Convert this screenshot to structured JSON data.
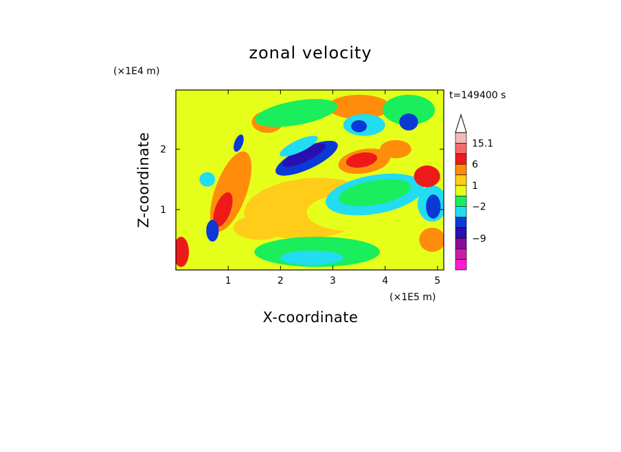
{
  "chart_data": {
    "type": "heatmap",
    "title": "zonal velocity",
    "xlabel": "X-coordinate",
    "ylabel": "Z-coordinate",
    "x_unit": "(×1E5 m)",
    "y_unit": "(×1E4 m)",
    "time_label": "t=149400 s",
    "xlim": [
      0,
      5.12
    ],
    "ylim": [
      0,
      2.98
    ],
    "x_ticks": [
      1,
      2,
      3,
      4,
      5
    ],
    "x_tick_labels": [
      "1",
      "2",
      "3",
      "4",
      "5"
    ],
    "y_ticks": [
      1,
      2
    ],
    "y_tick_labels": [
      "1",
      "2"
    ],
    "colorbar": {
      "levels": [
        {
          "color": "#ff1ad1"
        },
        {
          "color": "#c71fa3"
        },
        {
          "color": "#8c0a9c"
        },
        {
          "color": "#2a0fb0"
        },
        {
          "color": "#0a39d6"
        },
        {
          "color": "#22dcf2"
        },
        {
          "color": "#1aee5c"
        },
        {
          "color": "#e6ff1a"
        },
        {
          "color": "#ffcc1a"
        },
        {
          "color": "#ff8c0a"
        },
        {
          "color": "#ee1a1a"
        },
        {
          "color": "#f26a6a"
        },
        {
          "color": "#f7b8b8"
        }
      ],
      "labels": [
        {
          "text": "15.1",
          "at_level_top": 12
        },
        {
          "text": "6",
          "at_level_top": 10
        },
        {
          "text": "1",
          "at_level_top": 8
        },
        {
          "text": "−2",
          "at_level_top": 6
        },
        {
          "text": "−9",
          "at_level_top": 3
        }
      ]
    },
    "blobs": [
      {
        "x": 2.55,
        "z": 1.02,
        "rx": 1.25,
        "rz": 0.5,
        "rot": -5,
        "level": 8
      },
      {
        "x": 3.3,
        "z": 0.95,
        "rx": 0.8,
        "rz": 0.3,
        "rot": 0,
        "level": 7
      },
      {
        "x": 2.7,
        "z": 0.3,
        "rx": 1.2,
        "rz": 0.25,
        "rot": 0,
        "level": 6
      },
      {
        "x": 2.6,
        "z": 0.2,
        "rx": 0.6,
        "rz": 0.12,
        "rot": 0,
        "level": 5
      },
      {
        "x": 3.8,
        "z": 1.25,
        "rx": 0.95,
        "rz": 0.32,
        "rot": -10,
        "level": 5
      },
      {
        "x": 3.8,
        "z": 1.28,
        "rx": 0.7,
        "rz": 0.2,
        "rot": -10,
        "level": 6
      },
      {
        "x": 2.5,
        "z": 1.85,
        "rx": 0.65,
        "rz": 0.18,
        "rot": -25,
        "level": 4
      },
      {
        "x": 2.45,
        "z": 1.9,
        "rx": 0.45,
        "rz": 0.11,
        "rot": -25,
        "level": 3
      },
      {
        "x": 2.35,
        "z": 2.05,
        "rx": 0.4,
        "rz": 0.1,
        "rot": -25,
        "level": 5
      },
      {
        "x": 3.6,
        "z": 1.8,
        "rx": 0.5,
        "rz": 0.2,
        "rot": -10,
        "level": 9
      },
      {
        "x": 3.55,
        "z": 1.82,
        "rx": 0.3,
        "rz": 0.12,
        "rot": -10,
        "level": 10
      },
      {
        "x": 1.75,
        "z": 2.45,
        "rx": 0.3,
        "rz": 0.18,
        "rot": 0,
        "level": 9
      },
      {
        "x": 3.5,
        "z": 2.7,
        "rx": 0.6,
        "rz": 0.2,
        "rot": 0,
        "level": 9
      },
      {
        "x": 3.6,
        "z": 2.4,
        "rx": 0.4,
        "rz": 0.18,
        "rot": 0,
        "level": 5
      },
      {
        "x": 3.5,
        "z": 2.38,
        "rx": 0.15,
        "rz": 0.1,
        "rot": 0,
        "level": 4
      },
      {
        "x": 4.45,
        "z": 2.65,
        "rx": 0.5,
        "rz": 0.25,
        "rot": 0,
        "level": 6
      },
      {
        "x": 4.45,
        "z": 2.45,
        "rx": 0.18,
        "rz": 0.14,
        "rot": 0,
        "level": 4
      },
      {
        "x": 4.9,
        "z": 1.1,
        "rx": 0.28,
        "rz": 0.3,
        "rot": 0,
        "level": 5
      },
      {
        "x": 4.92,
        "z": 1.05,
        "rx": 0.14,
        "rz": 0.2,
        "rot": 0,
        "level": 4
      },
      {
        "x": 4.8,
        "z": 1.55,
        "rx": 0.25,
        "rz": 0.18,
        "rot": 0,
        "level": 10
      },
      {
        "x": 4.9,
        "z": 0.5,
        "rx": 0.25,
        "rz": 0.2,
        "rot": 0,
        "level": 9
      },
      {
        "x": 4.2,
        "z": 2.0,
        "rx": 0.3,
        "rz": 0.15,
        "rot": 0,
        "level": 9
      },
      {
        "x": 1.05,
        "z": 1.3,
        "rx": 0.3,
        "rz": 0.7,
        "rot": 20,
        "level": 9
      },
      {
        "x": 0.9,
        "z": 1.0,
        "rx": 0.15,
        "rz": 0.3,
        "rot": 20,
        "level": 10
      },
      {
        "x": 0.7,
        "z": 0.65,
        "rx": 0.12,
        "rz": 0.18,
        "rot": 0,
        "level": 4
      },
      {
        "x": 1.2,
        "z": 2.1,
        "rx": 0.08,
        "rz": 0.15,
        "rot": 20,
        "level": 4
      },
      {
        "x": 0.6,
        "z": 1.5,
        "rx": 0.15,
        "rz": 0.12,
        "rot": 0,
        "level": 5
      },
      {
        "x": 0.1,
        "z": 0.3,
        "rx": 0.15,
        "rz": 0.25,
        "rot": 0,
        "level": 10
      },
      {
        "x": 1.6,
        "z": 0.7,
        "rx": 0.5,
        "rz": 0.2,
        "rot": 0,
        "level": 8
      },
      {
        "x": 2.3,
        "z": 2.6,
        "rx": 0.8,
        "rz": 0.2,
        "rot": -10,
        "level": 6
      }
    ]
  }
}
